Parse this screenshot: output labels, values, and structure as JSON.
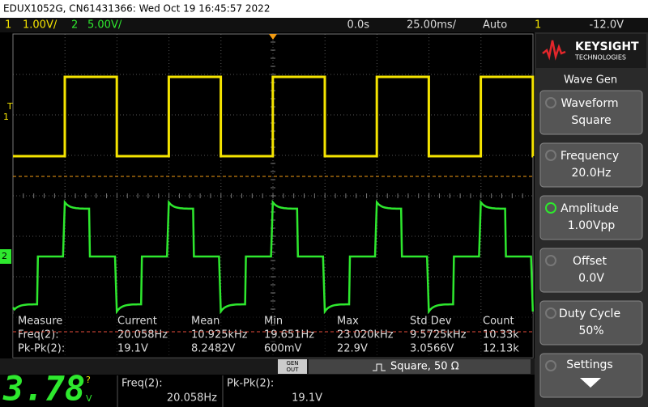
{
  "title_bar": "EDUX1052G, CN61431366: Wed Oct 19 16:45:57 2022",
  "status_bar": {
    "ch1_label": "1",
    "ch1_scale": "1.00V/",
    "ch2_label": "2",
    "ch2_scale": "5.00V/",
    "time_offset": "0.0s",
    "time_scale": "25.00ms/",
    "trigger_mode": "Auto",
    "trigger_source": "1",
    "trigger_level": "-12.0V"
  },
  "markers": {
    "trigger": "T",
    "ch1": "1",
    "ch2": "2"
  },
  "measurements": {
    "headers": [
      "Measure",
      "Current",
      "Mean",
      "Min",
      "Max",
      "Std Dev",
      "Count"
    ],
    "rows": [
      [
        "Freq(2):",
        "20.058Hz",
        "10.925kHz",
        "19.651Hz",
        "23.020kHz",
        "9.5725kHz",
        "10.33k"
      ],
      [
        "Pk-Pk(2):",
        "19.1V",
        "8.2482V",
        "600mV",
        "22.9V",
        "3.0566V",
        "12.13k"
      ]
    ]
  },
  "gen_bar": {
    "button": [
      "GEN",
      "OUT"
    ],
    "status": "Square, 50 Ω"
  },
  "meter": {
    "reading": "3.78",
    "flag": "?",
    "unit": "V",
    "measurements": [
      {
        "label": "Freq(2):",
        "value": "20.058Hz"
      },
      {
        "label": "Pk-Pk(2):",
        "value": "19.1V"
      }
    ]
  },
  "side_panel": {
    "logo": "KEYSIGHT",
    "logo_sub": "TECHNOLOGIES",
    "title": "Wave Gen",
    "buttons": [
      {
        "label": "Waveform",
        "value": "Square"
      },
      {
        "label": "Frequency",
        "value": "20.0Hz"
      },
      {
        "label": "Amplitude",
        "value": "1.00Vpp"
      },
      {
        "label": "Offset",
        "value": "0.0V"
      },
      {
        "label": "Duty Cycle",
        "value": "50%"
      },
      {
        "label": "Settings"
      }
    ]
  }
}
